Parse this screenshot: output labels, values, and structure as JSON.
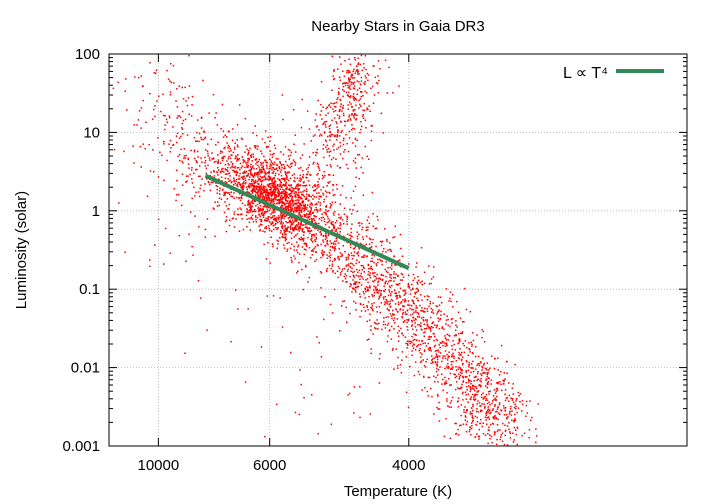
{
  "chart_data": {
    "type": "scatter",
    "title": "Nearby Stars in Gaia DR3",
    "xlabel": "Temperature (K)",
    "ylabel": "Luminosity (solar)",
    "x_scale": "reciprocal",
    "x_direction": "decreasing",
    "xlim": [
      14200,
      2400
    ],
    "y_scale": "log",
    "ylim": [
      0.001,
      100
    ],
    "x_ticks": [
      {
        "value": 10000,
        "label": "10000"
      },
      {
        "value": 6000,
        "label": "6000"
      },
      {
        "value": 4000,
        "label": "4000"
      }
    ],
    "y_ticks": [
      {
        "value": 0.001,
        "label": "0.001"
      },
      {
        "value": 0.01,
        "label": "0.01"
      },
      {
        "value": 0.1,
        "label": "0.1"
      },
      {
        "value": 1,
        "label": "1"
      },
      {
        "value": 10,
        "label": "10"
      },
      {
        "value": 100,
        "label": "100"
      }
    ],
    "grid": true,
    "legend_position": "top-right",
    "series": [
      {
        "name": "",
        "kind": "scatter",
        "color": "#ff0000",
        "marker": "dot",
        "groups": [
          {
            "points": [
              [
                7500,
                2.5
              ],
              [
                6800,
                3.5
              ],
              [
                6200,
                3.0
              ],
              [
                5800,
                2.0
              ],
              [
                5400,
                1.2
              ],
              [
                5000,
                0.6
              ],
              [
                4700,
                0.3
              ],
              [
                4400,
                0.16
              ],
              [
                4200,
                0.09
              ],
              [
                3950,
                0.045
              ],
              [
                3750,
                0.022
              ],
              [
                3600,
                0.011
              ],
              [
                3450,
                0.0055
              ],
              [
                3350,
                0.0025
              ],
              [
                3250,
                0.0015
              ]
            ],
            "spread_logL": 0.24,
            "spread_invT": 1.2e-05,
            "n": 2600
          },
          {
            "points": [
              [
                6300,
                2.2
              ],
              [
                6000,
                1.6
              ],
              [
                5700,
                1.0
              ],
              [
                5400,
                0.6
              ]
            ],
            "spread_logL": 0.2,
            "spread_invT": 1e-05,
            "n": 900
          },
          {
            "points": [
              [
                5000,
                5
              ],
              [
                4800,
                10
              ],
              [
                4700,
                20
              ],
              [
                4600,
                45
              ],
              [
                4500,
                90
              ]
            ],
            "spread_logL": 0.28,
            "spread_invT": 7.5e-06,
            "n": 420
          },
          {
            "points": [
              [
                11500,
                40
              ],
              [
                9500,
                18
              ],
              [
                8500,
                8
              ],
              [
                7800,
                4
              ]
            ],
            "spread_logL": 0.38,
            "spread_invT": 1.2e-05,
            "n": 180
          },
          {
            "points": [
              [
                12000,
                1
              ],
              [
                9000,
                1
              ],
              [
                7000,
                0.3
              ],
              [
                5500,
                0.1
              ],
              [
                4500,
                0.02
              ],
              [
                6000,
                30
              ]
            ],
            "spread_logL": 0.9,
            "spread_invT": 2e-05,
            "n": 120
          }
        ]
      },
      {
        "name": "L ∝ T⁴",
        "kind": "line",
        "color": "#2e8b57",
        "x": [
          7800,
          4000
        ],
        "y": [
          2.8,
          0.185
        ]
      }
    ]
  }
}
